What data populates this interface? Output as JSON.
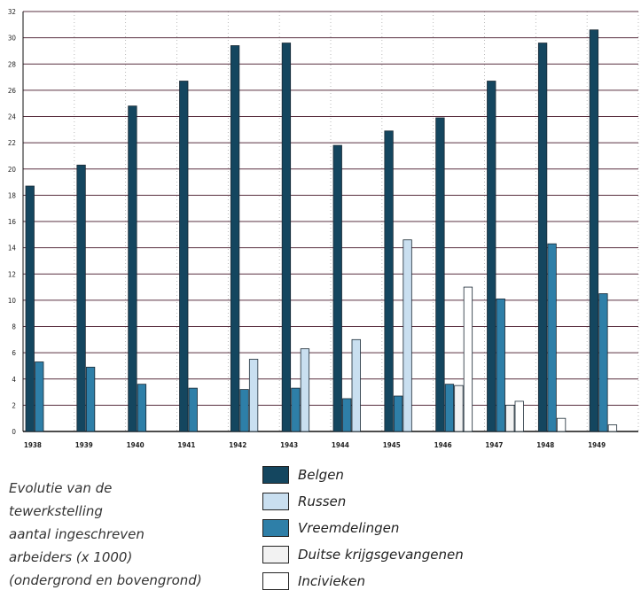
{
  "caption": [
    "Evolutie van de",
    "tewerkstelling",
    "aantal ingeschreven",
    "arbeiders (x 1000)",
    "(ondergrond en bovengrond)"
  ],
  "legend": [
    {
      "label": "Belgen",
      "color": "#14465f"
    },
    {
      "label": "Russen",
      "color": "#c9dff0"
    },
    {
      "label": "Vreemdelingen",
      "color": "#2e7fa8"
    },
    {
      "label": "Duitse krijgsgevangenen",
      "color": "#f2f2f2"
    },
    {
      "label": "Incivieken",
      "color": "#ffffff"
    }
  ],
  "chart_data": {
    "type": "bar",
    "categories": [
      "1938",
      "1939",
      "1940",
      "1941",
      "1942",
      "1943",
      "1944",
      "1945",
      "1946",
      "1947",
      "1948",
      "1949"
    ],
    "ylim": [
      0,
      32
    ],
    "yticks": [
      0,
      2,
      4,
      6,
      8,
      10,
      12,
      14,
      16,
      18,
      20,
      22,
      24,
      26,
      28,
      30,
      32
    ],
    "grid": true,
    "series": [
      {
        "name": "Belgen",
        "color": "#14465f",
        "values": [
          18.7,
          20.3,
          24.8,
          26.7,
          29.4,
          29.6,
          21.8,
          22.9,
          23.9,
          26.7,
          29.6,
          30.6
        ]
      },
      {
        "name": "Vreemdelingen",
        "color": "#2e7fa8",
        "values": [
          5.3,
          4.9,
          3.6,
          3.3,
          3.2,
          3.3,
          2.5,
          2.7,
          3.6,
          10.1,
          14.3,
          10.5
        ]
      },
      {
        "name": "Duitse krijgsgevangenen",
        "color": "#f2f2f2",
        "values": [
          0,
          0,
          0,
          0,
          0,
          0,
          0,
          0,
          3.5,
          2.0,
          0,
          0
        ]
      },
      {
        "name": "Russen",
        "color": "#c9dff0",
        "values": [
          0,
          0,
          0,
          0,
          5.5,
          6.3,
          7.0,
          14.6,
          0,
          0,
          0,
          0
        ]
      },
      {
        "name": "Incivieken",
        "color": "#ffffff",
        "values": [
          0,
          0,
          0,
          0,
          0,
          0,
          0,
          0,
          11.0,
          2.3,
          1.0,
          0.5
        ]
      }
    ]
  }
}
